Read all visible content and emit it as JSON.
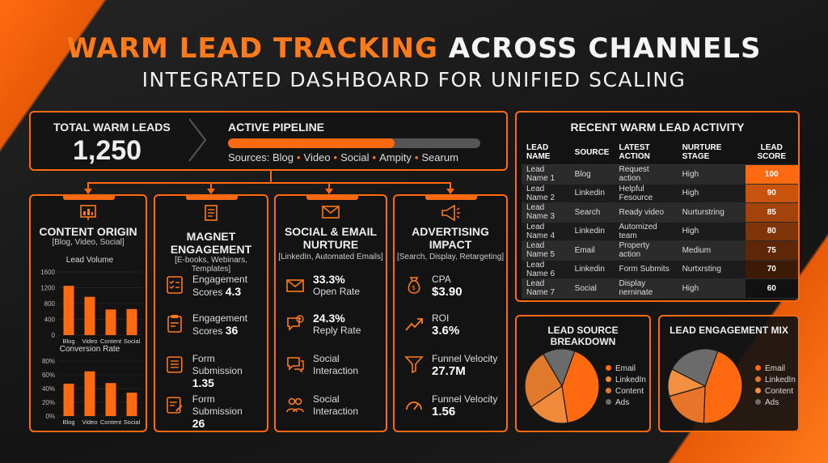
{
  "header": {
    "title_orange": "WARM LEAD TRACKING",
    "title_white": "ACROSS CHANNELS",
    "subtitle": "INTEGRATED DASHBOARD FOR UNIFIED SCALING"
  },
  "kpi": {
    "label": "TOTAL WARM LEADS",
    "value": "1,250",
    "pipeline_label": "ACTIVE PIPELINE",
    "pipeline_progress": 0.66,
    "sources_prefix": "Sources:",
    "sources": [
      "Blog",
      "Video",
      "Social",
      "Ampity",
      "Searum"
    ]
  },
  "columns": {
    "content": {
      "title": "CONTENT ORIGIN",
      "subtitle": "[Blog, Video, Social]"
    },
    "magnet": {
      "title_1": "MAGNET",
      "title_2": "ENGAGEMENT",
      "subtitle": "[E-books, Webinars, Templates]",
      "metrics": [
        {
          "icon": "checklist-icon",
          "label_1": "Engagement",
          "label_2": "Scores",
          "value": "4.3"
        },
        {
          "icon": "clipboard-icon",
          "label_1": "Engagement",
          "label_2": "Scores",
          "value": "36"
        },
        {
          "icon": "form-list-icon",
          "label_1": "Form Submission",
          "label_2": "",
          "value": "1.35"
        },
        {
          "icon": "form-edit-icon",
          "label_1": "Form Submission",
          "label_2": "",
          "value": "26"
        }
      ]
    },
    "social": {
      "title_1": "SOCIAL & EMAIL",
      "title_2": "NURTURE",
      "subtitle": "[LinkedIn, Automated Emails]",
      "metrics": [
        {
          "icon": "email-icon",
          "value": "33.3%",
          "label": "Open Rate"
        },
        {
          "icon": "chat-alert-icon",
          "value": "24.3%",
          "label": "Reply Rate"
        },
        {
          "icon": "chat-icon",
          "value": "",
          "label_1": "Social",
          "label_2": "Interaction"
        },
        {
          "icon": "people-icon",
          "value": "",
          "label_1": "Social",
          "label_2": "Interaction"
        }
      ]
    },
    "ads": {
      "title_1": "ADVERTISING",
      "title_2": "IMPACT",
      "subtitle": "[Search, Display, Retargeting]",
      "metrics": [
        {
          "icon": "money-bag-icon",
          "label": "CPA",
          "value": "$3.90"
        },
        {
          "icon": "trend-up-icon",
          "label": "ROI",
          "value": "3.6%"
        },
        {
          "icon": "funnel-icon",
          "label": "Funnel Velocity",
          "value": "27.7M"
        },
        {
          "icon": "gauge-icon",
          "label": "Funnel Velocity",
          "value": "1.56"
        }
      ]
    }
  },
  "chart_data": [
    {
      "type": "bar",
      "title": "Lead Volume",
      "categories": [
        "Blog",
        "Video",
        "Content",
        "Social"
      ],
      "values": [
        1250,
        970,
        650,
        660
      ],
      "ylim": [
        0,
        1600
      ],
      "yticks": [
        "0",
        "400",
        "800",
        "1200",
        "1600"
      ],
      "color": "#ff6a10"
    },
    {
      "type": "bar",
      "title": "Conversion Rate",
      "categories": [
        "Blog",
        "Video",
        "Content",
        "Social"
      ],
      "values": [
        47,
        65,
        48,
        34
      ],
      "ylim": [
        0,
        80
      ],
      "yticks": [
        "0%",
        "20%",
        "40%",
        "60%",
        "80%"
      ],
      "color": "#ff6a10"
    },
    {
      "type": "pie",
      "title": "LEAD SOURCE BREAKDOWN",
      "labels": [
        "Email",
        "LinkedIn",
        "Content",
        "Ads"
      ],
      "values": [
        42,
        18,
        26,
        14
      ],
      "colors": [
        "#ff6a10",
        "#f08a3a",
        "#e07a2a",
        "#6b6b6b"
      ]
    },
    {
      "type": "pie",
      "title": "LEAD ENGAGEMENT MIX",
      "labels": [
        "Email",
        "LinkedIn",
        "Content",
        "Ads"
      ],
      "values": [
        45,
        20,
        12,
        23
      ],
      "colors": [
        "#ff6a10",
        "#e8742a",
        "#f09040",
        "#6b6b6b"
      ]
    },
    {
      "type": "table",
      "title": "RECENT WARM LEAD ACTIVITY",
      "columns": [
        "LEAD NAME",
        "SOURCE",
        "LATEST ACTION",
        "NURTURE STAGE",
        "LEAD SCORE"
      ],
      "rows": [
        [
          "Lead Name 1",
          "Blog",
          "Request action",
          "High",
          "100"
        ],
        [
          "Lead Name 2",
          "Linkedin",
          "Helpful Fesource",
          "High",
          "90"
        ],
        [
          "Lead Name 3",
          "Search",
          "Ready video",
          "Nurturstring",
          "85"
        ],
        [
          "Lead Name 4",
          "Linkedin",
          "Automized team",
          "High",
          "80"
        ],
        [
          "Lead Name 5",
          "Email",
          "Property action",
          "Medium",
          "75"
        ],
        [
          "Lead Name 6",
          "Linkedin",
          "Form Submits",
          "Nurtxrsting",
          "70"
        ],
        [
          "Lead Name 7",
          "Social",
          "Display nerninate",
          "High",
          "60"
        ]
      ],
      "score_colors": [
        "#ff6a10",
        "#c9520c",
        "#a3430b",
        "#7f3509",
        "#5e2707",
        "#3d1a05",
        "#111111"
      ]
    }
  ]
}
